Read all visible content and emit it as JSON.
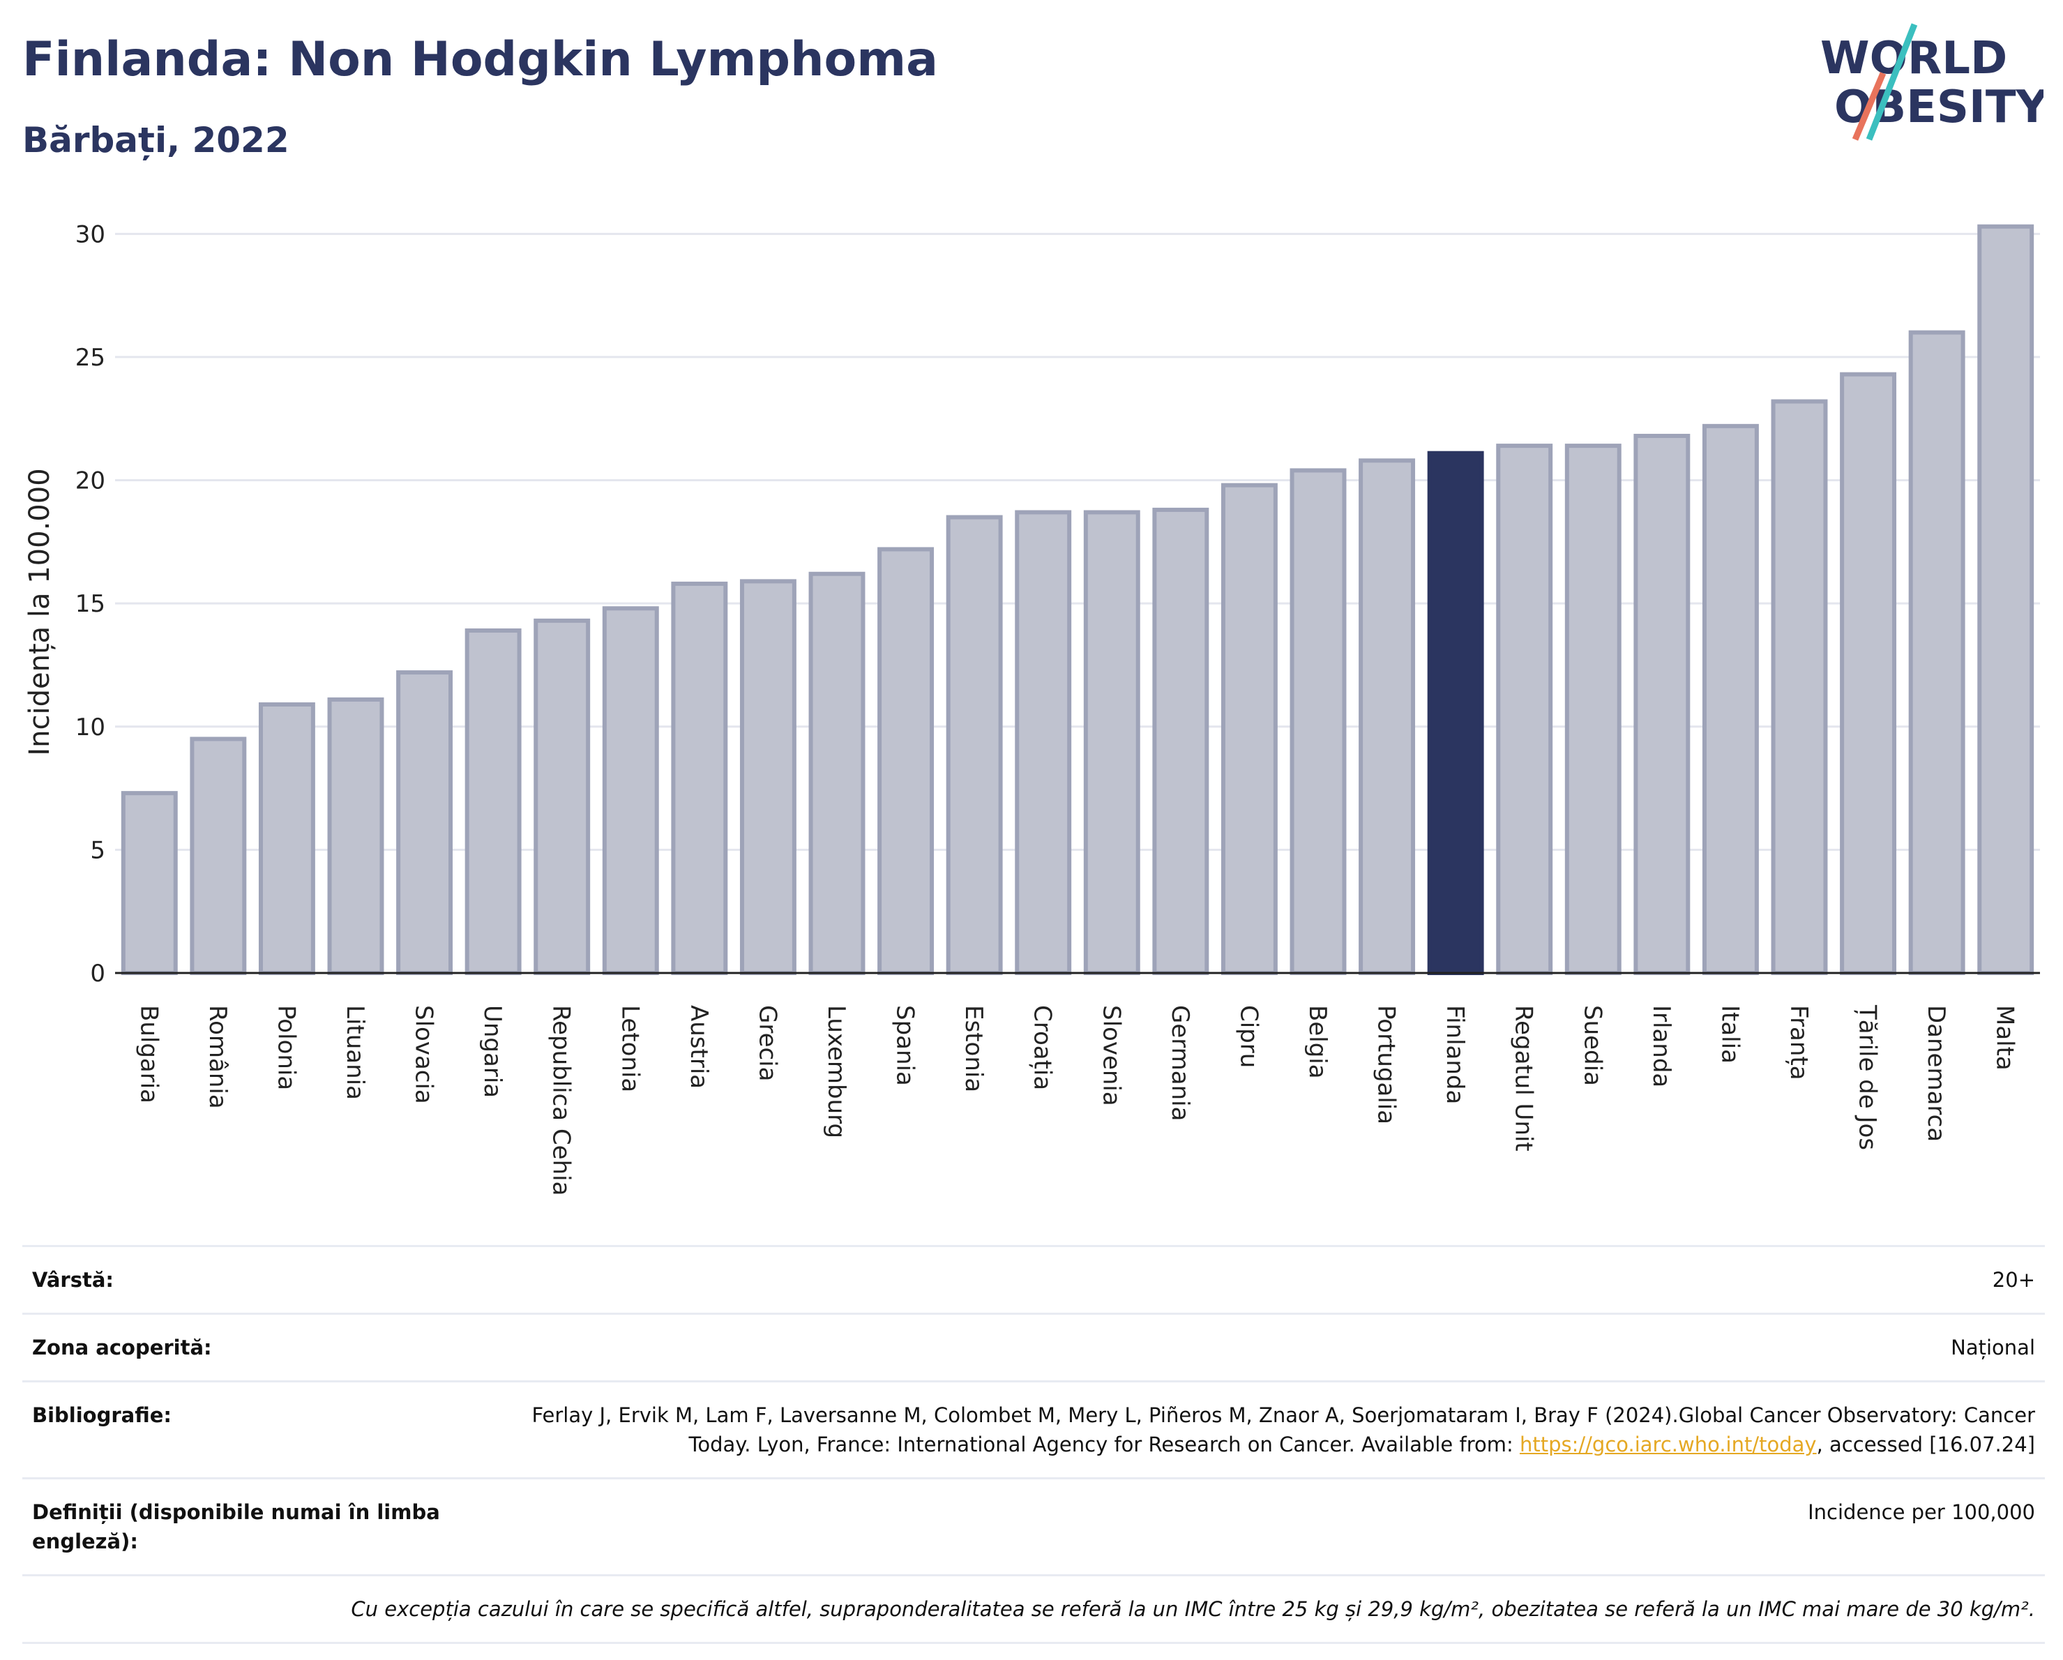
{
  "title": "Finlanda: Non Hodgkin Lymphoma",
  "subtitle": "Bărbați, 2022",
  "logo": {
    "line1": "WORLD",
    "line2": "OBESITY"
  },
  "colors": {
    "highlight": "#2b3560",
    "bar": "#bfc2cf",
    "bar_border": "#9ea3b8",
    "accent_teal": "#3bbfbf",
    "accent_red": "#e8735c"
  },
  "chart_data": {
    "type": "bar",
    "ylabel": "Incidența la 100.000",
    "ylim": [
      0,
      31
    ],
    "yticks": [
      0,
      5,
      10,
      15,
      20,
      25,
      30
    ],
    "grid": true,
    "highlight": "Finlanda",
    "categories": [
      "Bulgaria",
      "România",
      "Polonia",
      "Lituania",
      "Slovacia",
      "Ungaria",
      "Republica Cehia",
      "Letonia",
      "Austria",
      "Grecia",
      "Luxemburg",
      "Spania",
      "Estonia",
      "Croația",
      "Slovenia",
      "Germania",
      "Cipru",
      "Belgia",
      "Portugalia",
      "Finlanda",
      "Regatul Unit",
      "Suedia",
      "Irlanda",
      "Italia",
      "Franța",
      "Țările de Jos",
      "Danemarca",
      "Malta"
    ],
    "values": [
      7.3,
      9.5,
      10.9,
      11.1,
      12.2,
      13.9,
      14.3,
      14.8,
      15.8,
      15.9,
      16.2,
      17.2,
      18.5,
      18.7,
      18.7,
      18.8,
      19.8,
      20.4,
      20.8,
      21.1,
      21.4,
      21.4,
      21.8,
      22.2,
      23.2,
      24.3,
      26.0,
      30.3
    ]
  },
  "meta": {
    "age_label": "Vârstă:",
    "age_value": "20+",
    "area_label": "Zona acoperită:",
    "area_value": "Național",
    "biblio_label": "Bibliografie:",
    "biblio_text": "Ferlay J, Ervik M, Lam F, Laversanne M, Colombet M, Mery L, Piñeros M, Znaor A, Soerjomataram I, Bray F (2024).Global Cancer Observatory: Cancer Today. Lyon, France: International Agency for Research on Cancer. Available from: ",
    "biblio_link": "https://gco.iarc.who.int/today",
    "biblio_tail": ", accessed [16.07.24]",
    "def_label": "Definiții (disponibile numai în limba engleză):",
    "def_value": "Incidence per 100,000",
    "note": "Cu excepția cazului în care se specifică altfel, supraponderalitatea se referă la un IMC între 25 kg și 29,9 kg/m², obezitatea se referă la un IMC mai mare de 30 kg/m²."
  }
}
